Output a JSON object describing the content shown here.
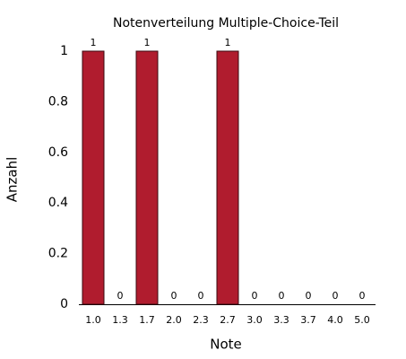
{
  "chart_data": {
    "type": "bar",
    "title": "Notenverteilung Multiple-Choice-Teil",
    "x_label": "Note",
    "y_label": "Anzahl",
    "categories": [
      "1.0",
      "1.3",
      "1.7",
      "2.0",
      "2.3",
      "2.7",
      "3.0",
      "3.3",
      "3.7",
      "4.0",
      "5.0"
    ],
    "values": [
      1,
      0,
      1,
      0,
      0,
      1,
      0,
      0,
      0,
      0,
      0
    ],
    "color": "#b01c2e",
    "ylim": [
      0,
      1
    ],
    "yticks": [
      0,
      0.2,
      0.4,
      0.6,
      0.8,
      1
    ]
  }
}
